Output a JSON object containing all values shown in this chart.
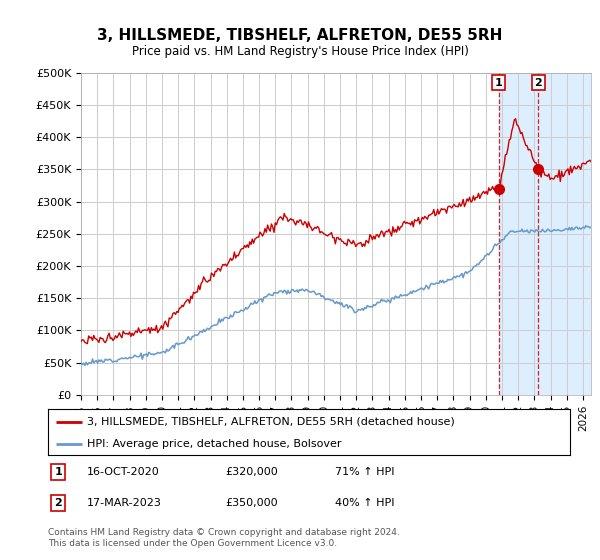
{
  "title": "3, HILLSMEDE, TIBSHELF, ALFRETON, DE55 5RH",
  "subtitle": "Price paid vs. HM Land Registry's House Price Index (HPI)",
  "ylabel_ticks": [
    "£0",
    "£50K",
    "£100K",
    "£150K",
    "£200K",
    "£250K",
    "£300K",
    "£350K",
    "£400K",
    "£450K",
    "£500K"
  ],
  "ylim": [
    0,
    500000
  ],
  "xlim_start": 1995,
  "xlim_end": 2026.5,
  "legend_line1": "3, HILLSMEDE, TIBSHELF, ALFRETON, DE55 5RH (detached house)",
  "legend_line2": "HPI: Average price, detached house, Bolsover",
  "annotation1_date": "16-OCT-2020",
  "annotation1_price": "£320,000",
  "annotation1_hpi": "71% ↑ HPI",
  "annotation2_date": "17-MAR-2023",
  "annotation2_price": "£350,000",
  "annotation2_hpi": "40% ↑ HPI",
  "footer": "Contains HM Land Registry data © Crown copyright and database right 2024.\nThis data is licensed under the Open Government Licence v3.0.",
  "red_color": "#cc0000",
  "blue_color": "#6699cc",
  "grid_color": "#cccccc",
  "bg_color": "#ffffff",
  "highlight_bg": "#ddeeff",
  "sale1_x": 2020.8,
  "sale1_y": 320000,
  "sale2_x": 2023.25,
  "sale2_y": 350000
}
